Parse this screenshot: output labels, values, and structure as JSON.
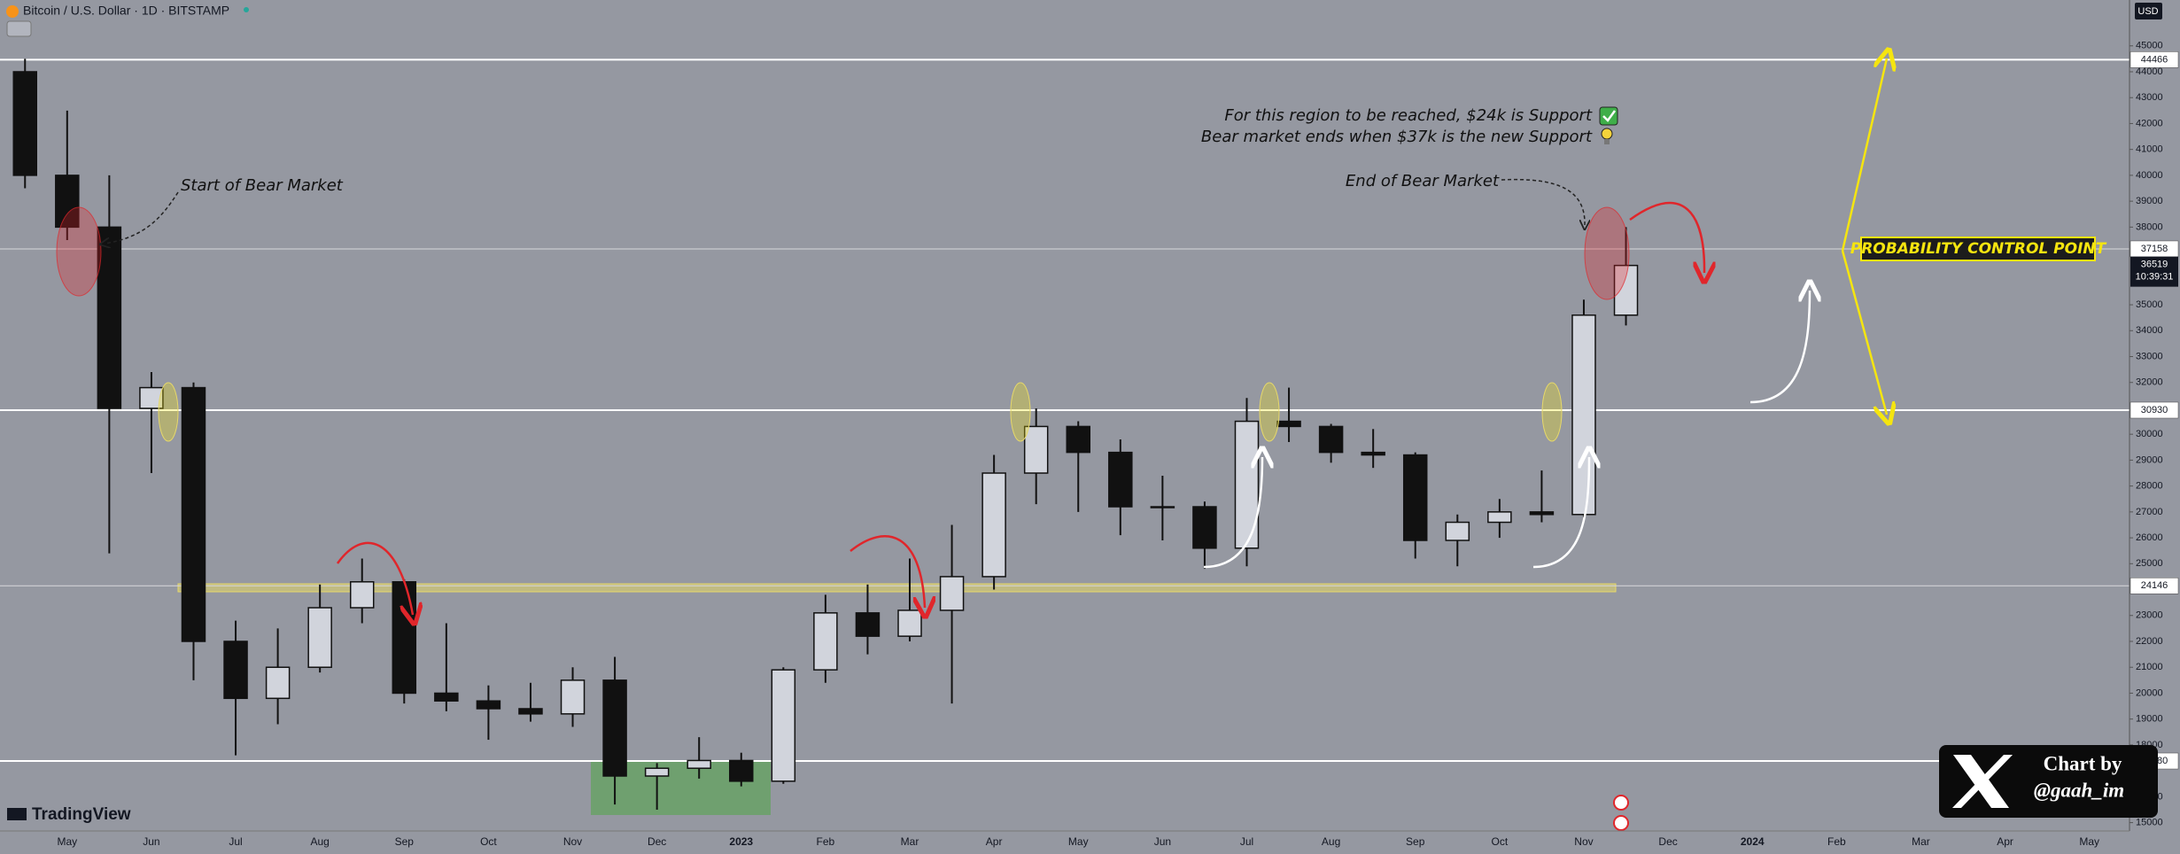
{
  "chart_data": {
    "type": "candlestick",
    "header": {
      "symbol": "Bitcoin / U.S. Dollar · 1D · BITSTAMP",
      "currency": "USD"
    },
    "categories": [
      null,
      "May",
      null,
      "Jun",
      null,
      "Jul",
      null,
      "Aug",
      null,
      "Sep",
      null,
      "Oct",
      null,
      "Nov",
      null,
      "Dec",
      null,
      "2023",
      null,
      "Feb",
      null,
      "Mar",
      null,
      "Apr",
      null,
      "May",
      null,
      "Jun",
      null,
      "Jul",
      null,
      "Aug",
      null,
      "Sep",
      null,
      "Oct",
      null,
      "Nov",
      null,
      "Dec",
      null,
      "2024",
      null,
      "Feb",
      null,
      "Mar",
      null,
      "Apr",
      null,
      "May",
      null
    ],
    "series": [
      {
        "up_color": "#d1d4dc",
        "down_color": "#111111",
        "open": [
          44000,
          40000,
          38000,
          31000,
          31800,
          22000,
          19800,
          21000,
          23300,
          24300,
          20000,
          19700,
          19400,
          19200,
          20500,
          16800,
          17100,
          17400,
          16600,
          20900,
          23100,
          22200,
          23200,
          24500,
          28500,
          30300,
          29300,
          27200,
          27200,
          25600,
          30500,
          30300,
          29300,
          29200,
          25900,
          26600,
          27000,
          26900,
          34600,
          null,
          null,
          null,
          null,
          null,
          null,
          null,
          null,
          null,
          null,
          null,
          null
        ],
        "high": [
          44500,
          42500,
          40000,
          32400,
          32000,
          22800,
          22500,
          24200,
          25200,
          24400,
          22700,
          20300,
          20400,
          21000,
          21400,
          17300,
          18300,
          17700,
          21000,
          23800,
          24200,
          25200,
          26500,
          29200,
          31000,
          30500,
          29800,
          28400,
          27400,
          31400,
          31800,
          30400,
          30200,
          29300,
          26900,
          27500,
          28600,
          35200,
          38000,
          null,
          null,
          null,
          null,
          null,
          null,
          null,
          null,
          null,
          null,
          null,
          null
        ],
        "low": [
          39500,
          37500,
          25400,
          28500,
          20500,
          17600,
          18800,
          20800,
          22700,
          19600,
          19300,
          18200,
          18900,
          18700,
          15700,
          15500,
          16700,
          16400,
          16500,
          20400,
          21500,
          22000,
          19600,
          24000,
          27300,
          27000,
          26100,
          25900,
          24800,
          24900,
          29700,
          28900,
          28700,
          25200,
          24900,
          26000,
          26600,
          26800,
          34200,
          null,
          null,
          null,
          null,
          null,
          null,
          null,
          null,
          null,
          null,
          null,
          null
        ],
        "close": [
          40000,
          38000,
          31000,
          31800,
          22000,
          19800,
          21000,
          23300,
          24300,
          20000,
          19700,
          19400,
          19200,
          20500,
          16800,
          17100,
          17400,
          16600,
          20900,
          23100,
          22200,
          23200,
          24500,
          28500,
          30300,
          29300,
          27200,
          27200,
          25600,
          30500,
          30300,
          29300,
          29200,
          25900,
          26600,
          27000,
          26900,
          34600,
          36519,
          null,
          null,
          null,
          null,
          null,
          null,
          null,
          null,
          null,
          null,
          null,
          null
        ]
      }
    ],
    "ylim": [
      14678,
      46771
    ],
    "yticks": [
      45000,
      44000,
      43000,
      42000,
      41000,
      40000,
      39000,
      38000,
      35000,
      34000,
      33000,
      32000,
      30000,
      29000,
      28000,
      27000,
      26000,
      25000,
      23000,
      22000,
      21000,
      20000,
      19000,
      18000,
      16000,
      15000
    ],
    "levels": [
      44466,
      30930,
      17380
    ],
    "thin_levels": [
      37158,
      24146
    ],
    "countdown": "10:39:31",
    "annotations": {
      "start": "Start of Bear Market",
      "end": "End of Bear Market",
      "note1": "For this region to be reached, $24k is Support",
      "note2": "Bear market ends when $37k is the new Support",
      "pcp": "PROBABILITY CONTROL POINT"
    },
    "branding": "TradingView",
    "credit": "Chart by",
    "handle": "@gaah_im"
  }
}
